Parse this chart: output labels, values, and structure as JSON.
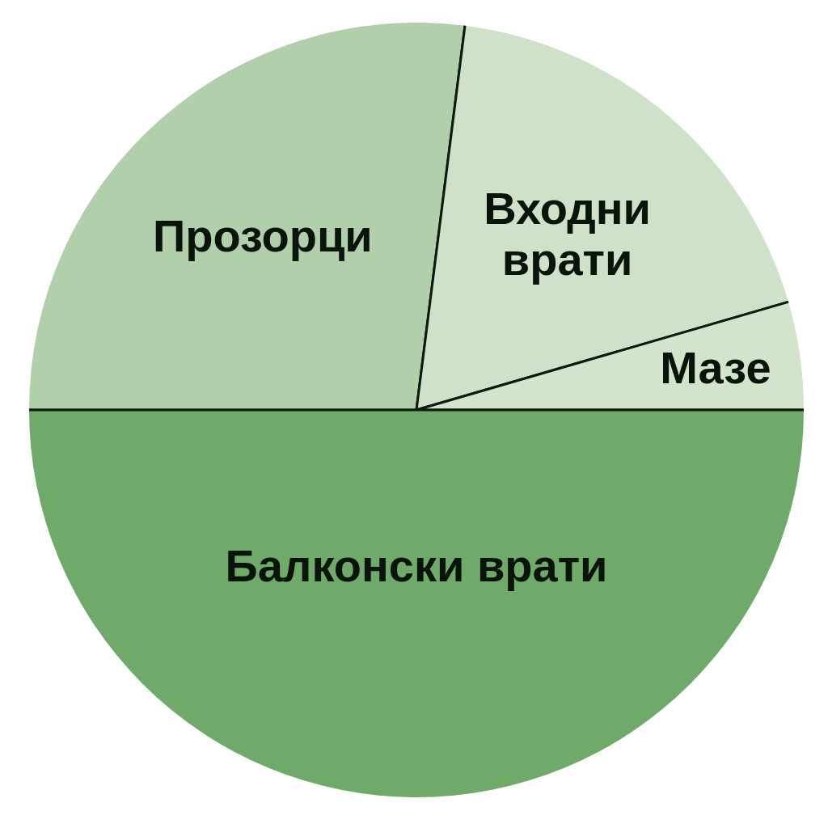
{
  "chart_data": {
    "type": "pie",
    "categories": [
      "Прозорци",
      "Входни врати",
      "Мазе",
      "Балконски врати"
    ],
    "values": [
      27,
      18.5,
      4.5,
      50
    ],
    "colors": [
      "#b2cfab",
      "#cfe2c9",
      "#d2e4cc",
      "#6faa6a"
    ]
  }
}
